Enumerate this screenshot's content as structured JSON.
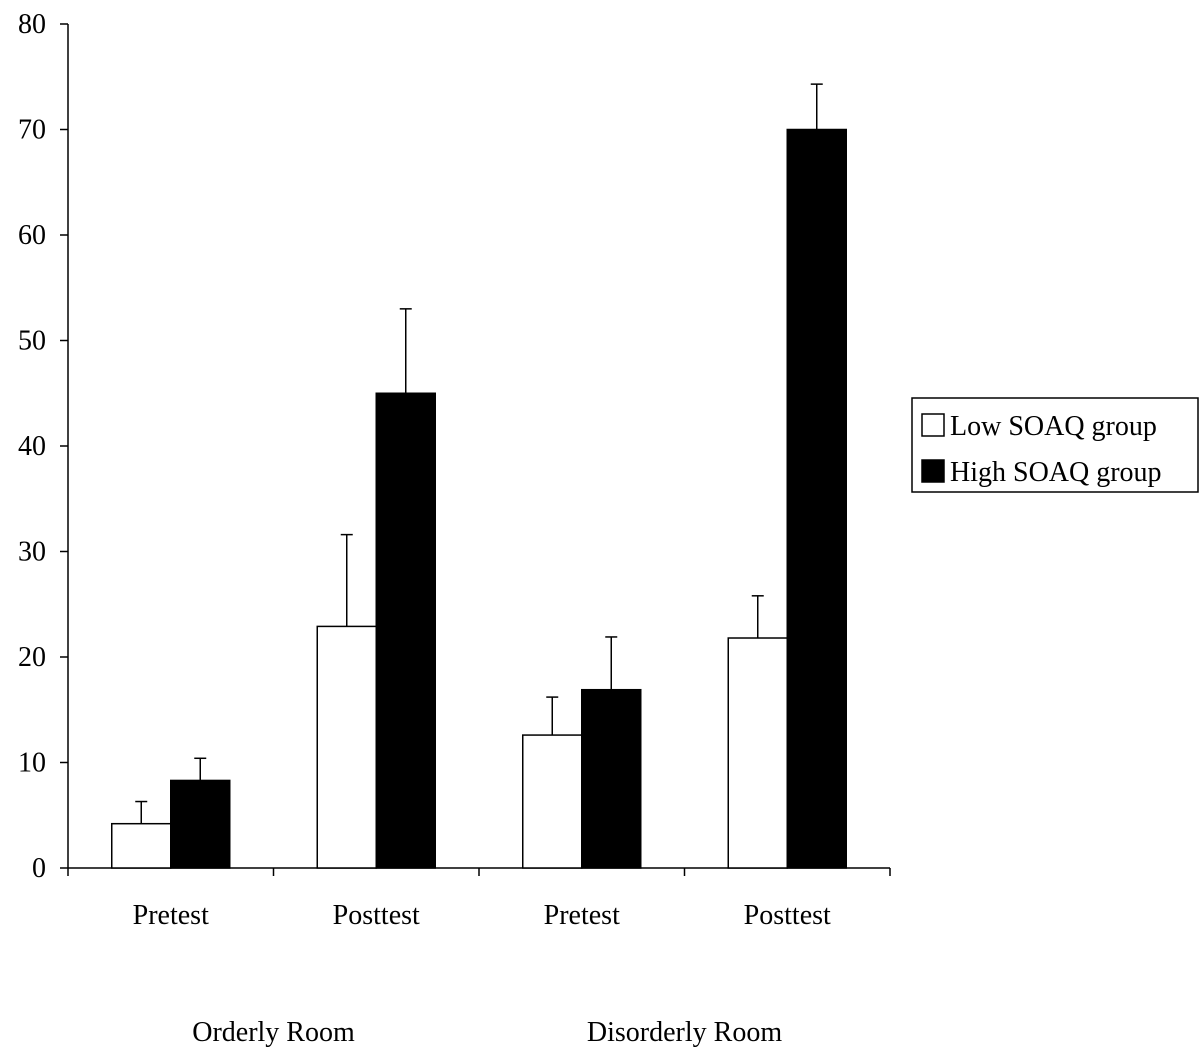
{
  "chart_data": {
    "type": "bar",
    "categories": [
      "Pretest",
      "Posttest",
      "Pretest",
      "Posttest"
    ],
    "groups": [
      {
        "label": "Orderly Room",
        "categories": [
          0,
          1
        ]
      },
      {
        "label": "Disorderly Room",
        "categories": [
          2,
          3
        ]
      }
    ],
    "series": [
      {
        "name": "Low SOAQ group",
        "color": "#ffffff",
        "values": [
          4.2,
          22.9,
          12.6,
          21.8
        ],
        "errors": [
          2.1,
          8.7,
          3.6,
          4.0
        ]
      },
      {
        "name": "High SOAQ group",
        "color": "#000000",
        "values": [
          8.3,
          45.0,
          16.9,
          70.0
        ],
        "errors": [
          2.1,
          8.0,
          5.0,
          4.3
        ]
      }
    ],
    "ylim": [
      0,
      80
    ],
    "yticks": [
      0,
      10,
      20,
      30,
      40,
      50,
      60,
      70,
      80
    ],
    "grid": false,
    "legend_position": "right"
  }
}
